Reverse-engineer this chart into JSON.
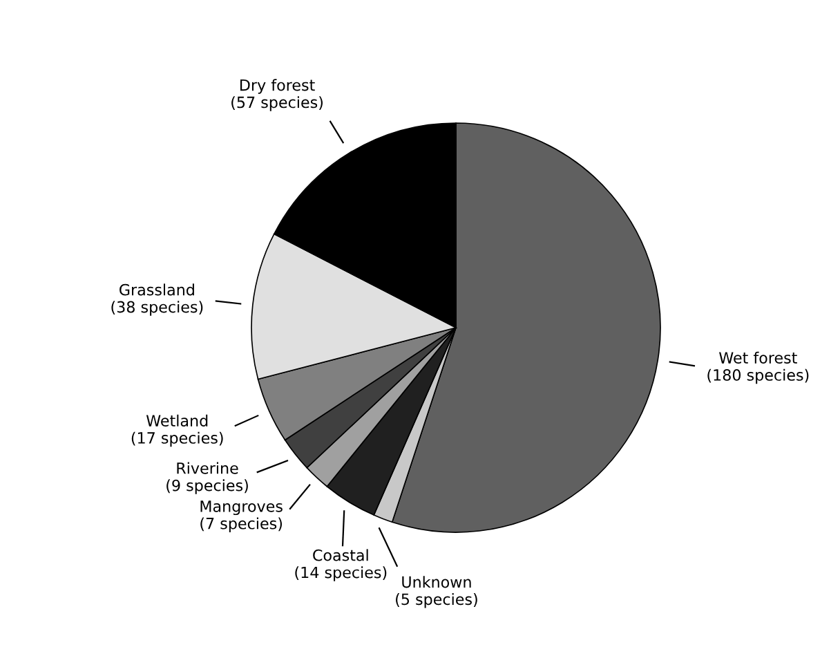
{
  "chart_data": {
    "type": "pie",
    "categories": [
      "Wet forest",
      "Unknown",
      "Coastal",
      "Mangroves",
      "Riverine",
      "Wetland",
      "Grassland",
      "Dry forest"
    ],
    "values": [
      180,
      5,
      14,
      7,
      9,
      17,
      38,
      57
    ],
    "colors": [
      "#606060",
      "#c8c8c8",
      "#202020",
      "#a0a0a0",
      "#404040",
      "#808080",
      "#e0e0e0",
      "#000000"
    ],
    "value_labels": [
      "(180 species)",
      "(5 species)",
      "(14 species)",
      "(7 species)",
      "(9 species)",
      "(17 species)",
      "(38 species)",
      "(57 species)"
    ],
    "legend": false
  }
}
